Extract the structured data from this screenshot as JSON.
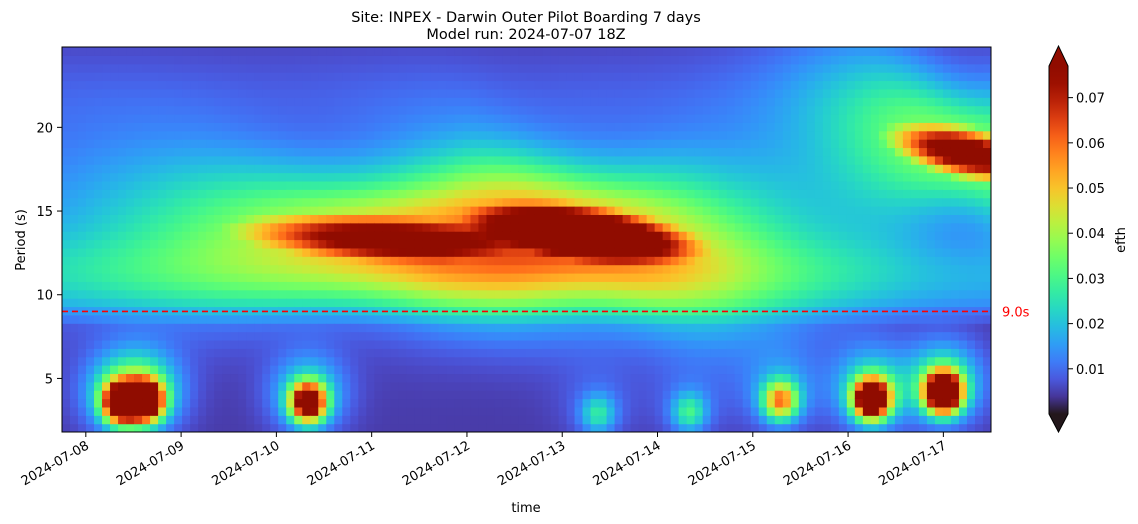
{
  "chart_data": {
    "type": "heatmap",
    "title": "Site: INPEX - Darwin Outer Pilot Boarding 7 days",
    "subtitle": "Model run: 2024-07-07 18Z",
    "xlabel": "time",
    "ylabel": "Period (s)",
    "xlim": [
      "2024-07-07T18:00",
      "2024-07-17T12:00"
    ],
    "ylim": [
      1.8,
      24.8
    ],
    "x_ticks": [
      "2024-07-08",
      "2024-07-09",
      "2024-07-10",
      "2024-07-11",
      "2024-07-12",
      "2024-07-13",
      "2024-07-14",
      "2024-07-15",
      "2024-07-16",
      "2024-07-17"
    ],
    "y_ticks": [
      "5",
      "10",
      "15",
      "20"
    ],
    "reference_line": {
      "value": 9.0,
      "label": "9.0s",
      "color": "#ff0000",
      "style": "dashed"
    },
    "colorbar": {
      "label": "efth",
      "colormap": "turbo",
      "vmin": 0.0,
      "vmax": 0.077,
      "ticks": [
        "0.01",
        "0.02",
        "0.03",
        "0.04",
        "0.05",
        "0.06",
        "0.07"
      ],
      "extend": "both"
    },
    "features": [
      {
        "description": "swell band",
        "start": "2024-07-07T18:00",
        "end": "2024-07-11T18:00",
        "period_start": 14.5,
        "period_end": 13.2,
        "peak_time": "2024-07-11T00:00",
        "peak_value": 0.066
      },
      {
        "description": "swell band",
        "start": "2024-07-12T00:00",
        "end": "2024-07-14T18:00",
        "period_start": 14.6,
        "period_end": 12.6,
        "peak_time": "2024-07-13T06:00",
        "peak_value": 0.09
      },
      {
        "description": "swell band",
        "start": "2024-07-15T12:00",
        "end": "2024-07-17T12:00",
        "period_start": 20.5,
        "period_end": 18.2,
        "peak_time": "2024-07-17T06:00",
        "peak_value": 0.085
      },
      {
        "description": "wind sea burst",
        "time": "2024-07-08T09:00",
        "period": 3.6,
        "peak_value": 0.09
      },
      {
        "description": "wind sea burst",
        "time": "2024-07-08T15:00",
        "period": 3.7,
        "peak_value": 0.09
      },
      {
        "description": "wind sea burst",
        "time": "2024-07-10T08:00",
        "period": 3.6,
        "peak_value": 0.08
      },
      {
        "description": "wind sea burst",
        "time": "2024-07-13T09:00",
        "period": 2.9,
        "peak_value": 0.018
      },
      {
        "description": "wind sea burst",
        "time": "2024-07-14T08:00",
        "period": 3.0,
        "peak_value": 0.02
      },
      {
        "description": "wind sea burst",
        "time": "2024-07-15T07:00",
        "period": 3.7,
        "peak_value": 0.045
      },
      {
        "description": "wind sea burst",
        "time": "2024-07-16T06:00",
        "period": 3.8,
        "peak_value": 0.095
      },
      {
        "description": "wind sea burst",
        "time": "2024-07-17T00:00",
        "period": 4.2,
        "peak_value": 0.11
      }
    ],
    "grid": false,
    "legend": "none"
  }
}
